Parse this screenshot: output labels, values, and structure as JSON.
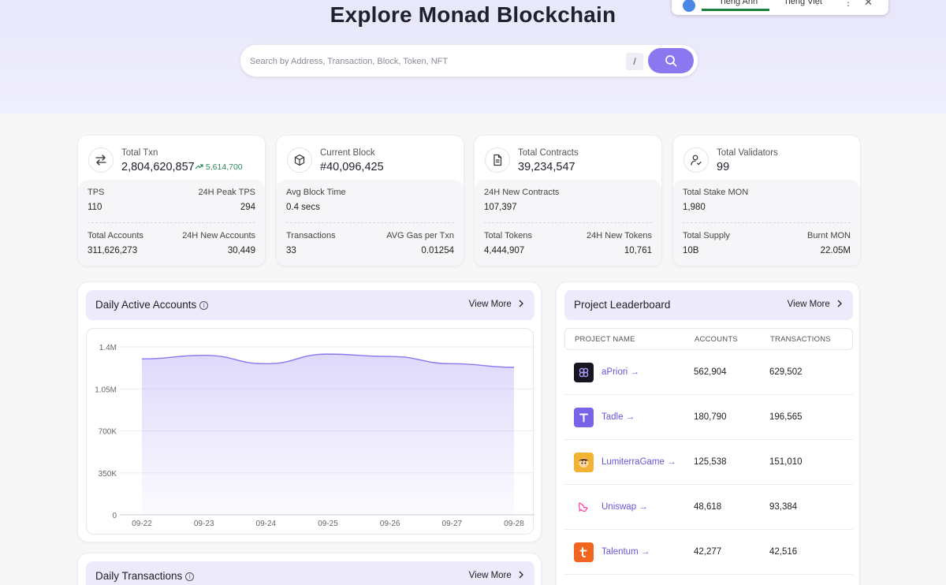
{
  "hero": {
    "title": "Explore Monad Blockchain",
    "search_placeholder": "Search by Address, Transaction, Block, Token, NFT",
    "shortcut_key": "/"
  },
  "translate_bar": {
    "tab_1": "Tiếng Anh",
    "tab_2": "Tiếng Việt",
    "more": "⋮",
    "close": "✕"
  },
  "stats": [
    {
      "icon": "swap-arrows-icon",
      "label": "Total Txn",
      "value": "2,804,620,857",
      "delta": "5,614,700",
      "rows": [
        {
          "left_label": "TPS",
          "right_label": "24H Peak TPS",
          "left_value": "110",
          "right_value": "294"
        },
        {
          "left_label": "Total Accounts",
          "right_label": "24H New Accounts",
          "left_value": "311,626,273",
          "right_value": "30,449"
        }
      ]
    },
    {
      "icon": "cube-icon",
      "label": "Current Block",
      "value": "#40,096,425",
      "rows": [
        {
          "left_label": "Avg Block Time",
          "right_label": "",
          "left_value": "0.4 secs",
          "right_value": ""
        },
        {
          "left_label": "Transactions",
          "right_label": "AVG Gas per Txn",
          "left_value": "33",
          "right_value": "0.01254"
        }
      ]
    },
    {
      "icon": "document-icon",
      "label": "Total Contracts",
      "value": "39,234,547",
      "rows": [
        {
          "left_label": "24H New Contracts",
          "right_label": "",
          "left_value": "107,397",
          "right_value": ""
        },
        {
          "left_label": "Total Tokens",
          "right_label": "24H New Tokens",
          "left_value": "4,444,907",
          "right_value": "10,761"
        }
      ]
    },
    {
      "icon": "user-check-icon",
      "label": "Total Validators",
      "value": "99",
      "rows": [
        {
          "left_label": "Total Stake MON",
          "right_label": "",
          "left_value": "1,980",
          "right_value": ""
        },
        {
          "left_label": "Total Supply",
          "right_label": "Burnt MON",
          "left_value": "10B",
          "right_value": "22.05M"
        }
      ]
    }
  ],
  "daily_accounts": {
    "title": "Daily Active Accounts",
    "view_more": "View More"
  },
  "daily_transactions": {
    "title": "Daily Transactions",
    "view_more": "View More"
  },
  "leaderboard": {
    "title": "Project Leaderboard",
    "view_more": "View More",
    "columns": [
      "PROJECT NAME",
      "ACCOUNTS",
      "TRANSACTIONS"
    ],
    "rows": [
      {
        "name": "aPriori →",
        "accounts": "562,904",
        "transactions": "629,502",
        "logo_color": "#17151f"
      },
      {
        "name": "Tadle →",
        "accounts": "180,790",
        "transactions": "196,565",
        "logo_color": "#7a63e8"
      },
      {
        "name": "LumiterraGame →",
        "accounts": "125,538",
        "transactions": "151,010",
        "logo_color": "#f2b233"
      },
      {
        "name": "Uniswap →",
        "accounts": "48,618",
        "transactions": "93,384",
        "logo_color": "#ff4fa6"
      },
      {
        "name": "Talentum →",
        "accounts": "42,277",
        "transactions": "42,516",
        "logo_color": "#f0651f"
      }
    ]
  },
  "chart_data": {
    "type": "area",
    "title": "Daily Active Accounts",
    "x": [
      "09-22",
      "09-23",
      "09-24",
      "09-25",
      "09-26",
      "09-27",
      "09-28"
    ],
    "y_ticks": [
      "0",
      "350K",
      "700K",
      "1.05M",
      "1.4M"
    ],
    "ylim": [
      0,
      1400000
    ],
    "series": [
      {
        "values": [
          1300000,
          1330000,
          1260000,
          1340000,
          1320000,
          1260000,
          1230000
        ]
      }
    ],
    "grid": true,
    "color": "#8b77f0"
  }
}
